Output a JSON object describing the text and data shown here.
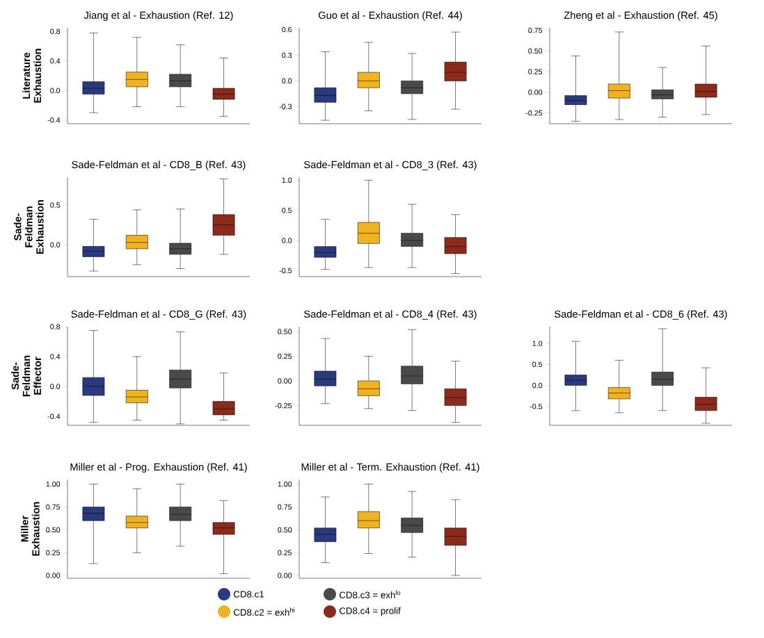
{
  "chart_data": [
    {
      "type": "box",
      "title": "Jiang et al - Exhaustion (Ref. 12)",
      "ylabel": "Literature Exhaustion",
      "categories": [
        null,
        null,
        null,
        null
      ],
      "colors": [
        "#2b3a7e",
        "#f0b21e",
        "#4a4a4a",
        "#8c2b1c"
      ],
      "ylim": [
        -0.45,
        0.85
      ],
      "yticks": [
        {
          "value": -0.4,
          "label": "-0.4"
        },
        {
          "value": 0,
          "label": "0.0"
        },
        {
          "value": 0.4,
          "label": "0.4"
        },
        {
          "value": 0.8,
          "label": "0.8"
        }
      ],
      "boxes": [
        {
          "low": -0.3,
          "q1": -0.05,
          "median": 0.03,
          "q3": 0.12,
          "high": 0.78
        },
        {
          "low": -0.22,
          "q1": 0.05,
          "median": 0.15,
          "q3": 0.25,
          "high": 0.72
        },
        {
          "low": -0.22,
          "q1": 0.05,
          "median": 0.13,
          "q3": 0.22,
          "high": 0.62
        },
        {
          "low": -0.35,
          "q1": -0.12,
          "median": -0.05,
          "q3": 0.03,
          "high": 0.44
        }
      ]
    },
    {
      "type": "box",
      "title": "Guo et al - Exhaustion (Ref. 44)",
      "categories": [
        null,
        null,
        null,
        null
      ],
      "colors": [
        "#2b3a7e",
        "#f0b21e",
        "#4a4a4a",
        "#8c2b1c"
      ],
      "ylim": [
        -0.5,
        0.62
      ],
      "yticks": [
        {
          "value": -0.3,
          "label": "-0.3"
        },
        {
          "value": 0,
          "label": "0.0"
        },
        {
          "value": 0.3,
          "label": "0.3"
        },
        {
          "value": 0.6,
          "label": "0.6"
        }
      ],
      "boxes": [
        {
          "low": -0.46,
          "q1": -0.25,
          "median": -0.17,
          "q3": -0.08,
          "high": 0.34
        },
        {
          "low": -0.35,
          "q1": -0.08,
          "median": 0.0,
          "q3": 0.1,
          "high": 0.45
        },
        {
          "low": -0.45,
          "q1": -0.15,
          "median": -0.08,
          "q3": 0.0,
          "high": 0.32
        },
        {
          "low": -0.33,
          "q1": 0.0,
          "median": 0.1,
          "q3": 0.22,
          "high": 0.57
        }
      ]
    },
    {
      "type": "box",
      "title": "Zheng et al - Exhaustion (Ref. 45)",
      "categories": [
        null,
        null,
        null,
        null
      ],
      "colors": [
        "#2b3a7e",
        "#f0b21e",
        "#4a4a4a",
        "#8c2b1c"
      ],
      "ylim": [
        -0.38,
        0.78
      ],
      "yticks": [
        {
          "value": -0.25,
          "label": "-0.25"
        },
        {
          "value": 0,
          "label": "0.00"
        },
        {
          "value": 0.25,
          "label": "0.25"
        },
        {
          "value": 0.5,
          "label": "0.50"
        },
        {
          "value": 0.75,
          "label": "0.75"
        }
      ],
      "boxes": [
        {
          "low": -0.35,
          "q1": -0.15,
          "median": -0.1,
          "q3": -0.04,
          "high": 0.44
        },
        {
          "low": -0.33,
          "q1": -0.07,
          "median": 0.02,
          "q3": 0.1,
          "high": 0.73
        },
        {
          "low": -0.3,
          "q1": -0.08,
          "median": -0.03,
          "q3": 0.03,
          "high": 0.3
        },
        {
          "low": -0.27,
          "q1": -0.06,
          "median": 0.01,
          "q3": 0.1,
          "high": 0.56
        }
      ]
    },
    {
      "type": "box",
      "title": "Sade-Feldman et al - CD8_B (Ref. 43)",
      "ylabel": "Sade-Feldman Exhaustion",
      "categories": [
        null,
        null,
        null,
        null
      ],
      "colors": [
        "#2b3a7e",
        "#f0b21e",
        "#4a4a4a",
        "#8c2b1c"
      ],
      "ylim": [
        -0.4,
        0.85
      ],
      "yticks": [
        {
          "value": 0,
          "label": "0.0"
        },
        {
          "value": 0.5,
          "label": "0.5"
        }
      ],
      "boxes": [
        {
          "low": -0.33,
          "q1": -0.15,
          "median": -0.08,
          "q3": -0.02,
          "high": 0.32
        },
        {
          "low": -0.25,
          "q1": -0.05,
          "median": 0.03,
          "q3": 0.12,
          "high": 0.44
        },
        {
          "low": -0.3,
          "q1": -0.12,
          "median": -0.05,
          "q3": 0.02,
          "high": 0.45
        },
        {
          "low": -0.12,
          "q1": 0.12,
          "median": 0.25,
          "q3": 0.38,
          "high": 0.83
        }
      ]
    },
    {
      "type": "box",
      "title": "Sade-Feldman et al - CD8_3 (Ref. 43)",
      "categories": [
        null,
        null,
        null,
        null
      ],
      "colors": [
        "#2b3a7e",
        "#f0b21e",
        "#4a4a4a",
        "#8c2b1c"
      ],
      "ylim": [
        -0.6,
        1.05
      ],
      "yticks": [
        {
          "value": -0.5,
          "label": "-0.5"
        },
        {
          "value": 0,
          "label": "0.0"
        },
        {
          "value": 0.5,
          "label": "0.5"
        },
        {
          "value": 1,
          "label": "1.0"
        }
      ],
      "boxes": [
        {
          "low": -0.48,
          "q1": -0.28,
          "median": -0.2,
          "q3": -0.1,
          "high": 0.35
        },
        {
          "low": -0.45,
          "q1": -0.05,
          "median": 0.12,
          "q3": 0.3,
          "high": 1.0
        },
        {
          "low": -0.45,
          "q1": -0.1,
          "median": 0.0,
          "q3": 0.12,
          "high": 0.6
        },
        {
          "low": -0.55,
          "q1": -0.22,
          "median": -0.1,
          "q3": 0.05,
          "high": 0.43
        }
      ]
    },
    {
      "type": "box",
      "title": "Sade-Feldman et al - CD8_G (Ref. 43)",
      "ylabel": "Sade-Feldman Effector",
      "categories": [
        null,
        null,
        null,
        null
      ],
      "colors": [
        "#2b3a7e",
        "#f0b21e",
        "#4a4a4a",
        "#8c2b1c"
      ],
      "ylim": [
        -0.52,
        0.8
      ],
      "yticks": [
        {
          "value": -0.4,
          "label": "-0.4"
        },
        {
          "value": 0,
          "label": "0.0"
        },
        {
          "value": 0.4,
          "label": "0.4"
        },
        {
          "value": 0.8,
          "label": "0.8"
        }
      ],
      "boxes": [
        {
          "low": -0.48,
          "q1": -0.12,
          "median": 0.0,
          "q3": 0.12,
          "high": 0.75
        },
        {
          "low": -0.45,
          "q1": -0.22,
          "median": -0.14,
          "q3": -0.05,
          "high": 0.4
        },
        {
          "low": -0.5,
          "q1": -0.02,
          "median": 0.1,
          "q3": 0.22,
          "high": 0.73
        },
        {
          "low": -0.45,
          "q1": -0.38,
          "median": -0.3,
          "q3": -0.2,
          "high": 0.18
        }
      ]
    },
    {
      "type": "box",
      "title": "Sade-Feldman et al - CD8_4 (Ref. 43)",
      "categories": [
        null,
        null,
        null,
        null
      ],
      "colors": [
        "#2b3a7e",
        "#f0b21e",
        "#4a4a4a",
        "#8c2b1c"
      ],
      "ylim": [
        -0.45,
        0.55
      ],
      "yticks": [
        {
          "value": -0.25,
          "label": "-0.25"
        },
        {
          "value": 0,
          "label": "0.00"
        },
        {
          "value": 0.25,
          "label": "0.25"
        },
        {
          "value": 0.5,
          "label": "0.50"
        }
      ],
      "boxes": [
        {
          "low": -0.23,
          "q1": -0.05,
          "median": 0.02,
          "q3": 0.1,
          "high": 0.43
        },
        {
          "low": -0.28,
          "q1": -0.15,
          "median": -0.08,
          "q3": 0.0,
          "high": 0.25
        },
        {
          "low": -0.3,
          "q1": -0.03,
          "median": 0.05,
          "q3": 0.15,
          "high": 0.52
        },
        {
          "low": -0.42,
          "q1": -0.25,
          "median": -0.17,
          "q3": -0.08,
          "high": 0.2
        }
      ]
    },
    {
      "type": "box",
      "title": "Sade-Feldman et al - CD8_6 (Ref. 43)",
      "categories": [
        null,
        null,
        null,
        null
      ],
      "colors": [
        "#2b3a7e",
        "#f0b21e",
        "#4a4a4a",
        "#8c2b1c"
      ],
      "ylim": [
        -0.95,
        1.4
      ],
      "yticks": [
        {
          "value": -0.5,
          "label": "-0.5"
        },
        {
          "value": 0,
          "label": "0.0"
        },
        {
          "value": 0.5,
          "label": "0.5"
        },
        {
          "value": 1,
          "label": "1.0"
        }
      ],
      "boxes": [
        {
          "low": -0.6,
          "q1": 0.0,
          "median": 0.12,
          "q3": 0.25,
          "high": 1.05
        },
        {
          "low": -0.65,
          "q1": -0.32,
          "median": -0.18,
          "q3": -0.05,
          "high": 0.6
        },
        {
          "low": -0.6,
          "q1": 0.0,
          "median": 0.15,
          "q3": 0.32,
          "high": 1.35
        },
        {
          "low": -0.9,
          "q1": -0.6,
          "median": -0.45,
          "q3": -0.28,
          "high": 0.42
        }
      ]
    },
    {
      "type": "box",
      "title": "Miller et al - Prog. Exhaustion (Ref. 41)",
      "ylabel": "Miller Exhaustion",
      "categories": [
        null,
        null,
        null,
        null
      ],
      "colors": [
        "#2b3a7e",
        "#f0b21e",
        "#4a4a4a",
        "#8c2b1c"
      ],
      "ylim": [
        -0.03,
        1.05
      ],
      "yticks": [
        {
          "value": 0,
          "label": "0.00"
        },
        {
          "value": 0.25,
          "label": "0.25"
        },
        {
          "value": 0.5,
          "label": "0.50"
        },
        {
          "value": 0.75,
          "label": "0.75"
        },
        {
          "value": 1,
          "label": "1.00"
        }
      ],
      "boxes": [
        {
          "low": 0.13,
          "q1": 0.6,
          "median": 0.68,
          "q3": 0.75,
          "high": 1.0
        },
        {
          "low": 0.25,
          "q1": 0.52,
          "median": 0.58,
          "q3": 0.65,
          "high": 0.95
        },
        {
          "low": 0.32,
          "q1": 0.6,
          "median": 0.67,
          "q3": 0.75,
          "high": 1.0
        },
        {
          "low": 0.02,
          "q1": 0.45,
          "median": 0.52,
          "q3": 0.58,
          "high": 0.82
        }
      ]
    },
    {
      "type": "box",
      "title": "Miller et al - Term. Exhaustion (Ref. 41)",
      "categories": [
        null,
        null,
        null,
        null
      ],
      "colors": [
        "#2b3a7e",
        "#f0b21e",
        "#4a4a4a",
        "#8c2b1c"
      ],
      "ylim": [
        -0.03,
        1.05
      ],
      "yticks": [
        {
          "value": 0,
          "label": "0.00"
        },
        {
          "value": 0.25,
          "label": "0.25"
        },
        {
          "value": 0.5,
          "label": "0.50"
        },
        {
          "value": 0.75,
          "label": "0.75"
        },
        {
          "value": 1,
          "label": "1.00"
        }
      ],
      "boxes": [
        {
          "low": 0.14,
          "q1": 0.37,
          "median": 0.45,
          "q3": 0.52,
          "high": 0.86
        },
        {
          "low": 0.24,
          "q1": 0.52,
          "median": 0.6,
          "q3": 0.7,
          "high": 1.0
        },
        {
          "low": 0.2,
          "q1": 0.47,
          "median": 0.55,
          "q3": 0.63,
          "high": 0.92
        },
        {
          "low": 0.0,
          "q1": 0.33,
          "median": 0.43,
          "q3": 0.52,
          "high": 0.83
        }
      ]
    },
    {
      "type": "other",
      "categories": [
        "CD8.c1",
        "CD8.c2 = exh$^{hi}$",
        "CD8.c3 = exh$^{lo}$",
        "CD8.c4 = prolif"
      ],
      "colors": [
        "#2b3a7e",
        "#f0b21e",
        "#4a4a4a",
        "#8c2b1c"
      ]
    }
  ]
}
